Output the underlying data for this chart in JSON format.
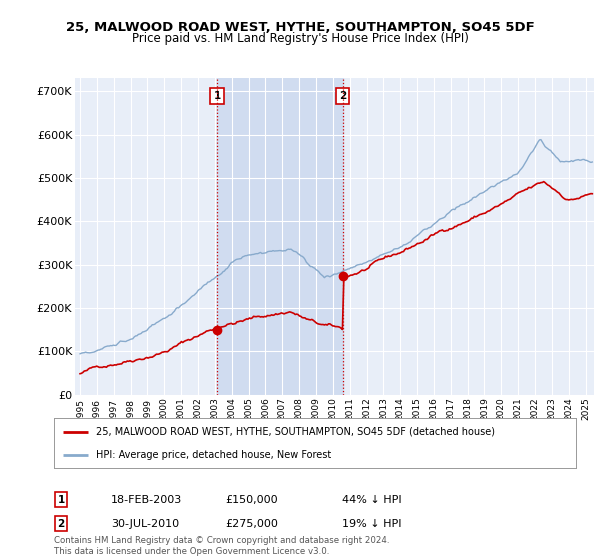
{
  "title": "25, MALWOOD ROAD WEST, HYTHE, SOUTHAMPTON, SO45 5DF",
  "subtitle": "Price paid vs. HM Land Registry's House Price Index (HPI)",
  "ylabel_ticks": [
    "£0",
    "£100K",
    "£200K",
    "£300K",
    "£400K",
    "£500K",
    "£600K",
    "£700K"
  ],
  "ytick_values": [
    0,
    100000,
    200000,
    300000,
    400000,
    500000,
    600000,
    700000
  ],
  "ylim": [
    0,
    730000
  ],
  "xlim_start": 1994.7,
  "xlim_end": 2025.5,
  "line1_color": "#cc0000",
  "line2_color": "#88aacc",
  "transaction1": {
    "date_num": 2003.13,
    "price": 150000,
    "label": "1",
    "text": "18-FEB-2003",
    "price_str": "£150,000",
    "pct": "44% ↓ HPI"
  },
  "transaction2": {
    "date_num": 2010.58,
    "price": 275000,
    "label": "2",
    "text": "30-JUL-2010",
    "price_str": "£275,000",
    "pct": "19% ↓ HPI"
  },
  "vline_color": "#cc0000",
  "vline_style": ":",
  "background_color": "#ffffff",
  "plot_bg_color": "#e8eef8",
  "grid_color": "#ffffff",
  "shade_color": "#d0dcf0",
  "legend_label1": "25, MALWOOD ROAD WEST, HYTHE, SOUTHAMPTON, SO45 5DF (detached house)",
  "legend_label2": "HPI: Average price, detached house, New Forest",
  "footer": "Contains HM Land Registry data © Crown copyright and database right 2024.\nThis data is licensed under the Open Government Licence v3.0.",
  "xtick_years": [
    1995,
    1996,
    1997,
    1998,
    1999,
    2000,
    2001,
    2002,
    2003,
    2004,
    2005,
    2006,
    2007,
    2008,
    2009,
    2010,
    2011,
    2012,
    2013,
    2014,
    2015,
    2016,
    2017,
    2018,
    2019,
    2020,
    2021,
    2022,
    2023,
    2024,
    2025
  ]
}
